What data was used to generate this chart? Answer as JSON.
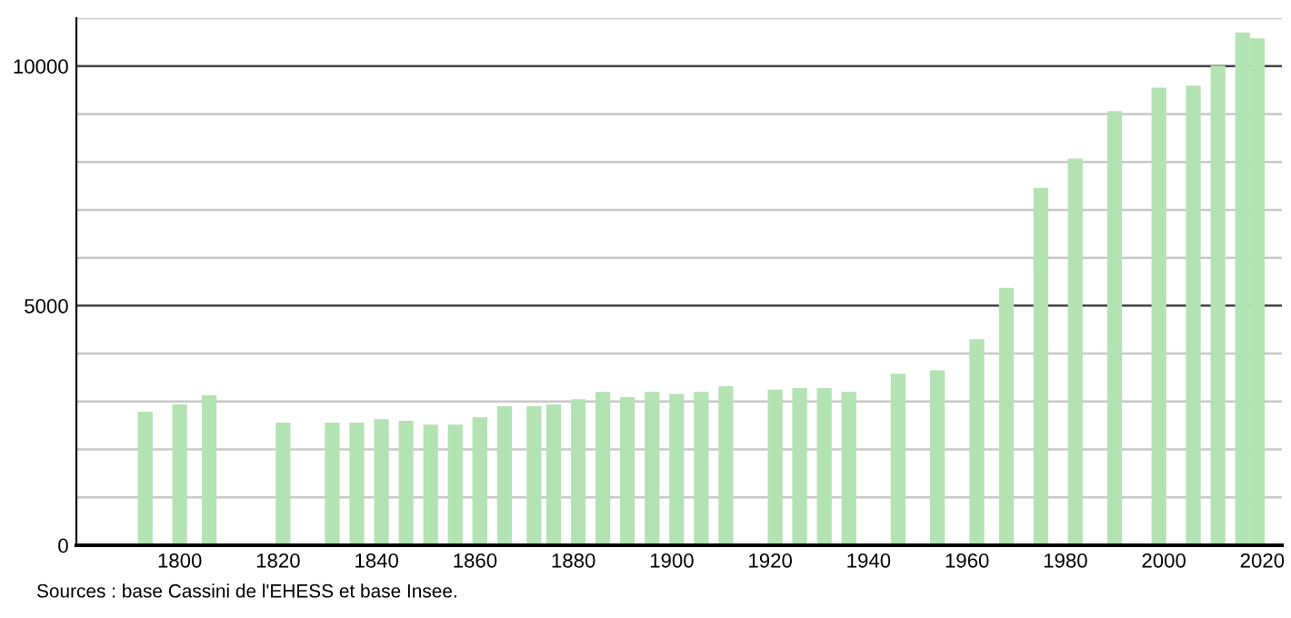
{
  "chart_data": {
    "type": "bar",
    "x": [
      1793,
      1800,
      1806,
      1821,
      1831,
      1836,
      1841,
      1846,
      1851,
      1856,
      1861,
      1866,
      1872,
      1876,
      1881,
      1886,
      1891,
      1896,
      1901,
      1906,
      1911,
      1921,
      1926,
      1931,
      1936,
      1946,
      1954,
      1962,
      1968,
      1975,
      1982,
      1990,
      1999,
      2006,
      2011,
      2016,
      2019
    ],
    "values": [
      2790,
      2940,
      3130,
      2560,
      2560,
      2560,
      2630,
      2600,
      2520,
      2520,
      2670,
      2900,
      2900,
      2940,
      3050,
      3200,
      3090,
      3200,
      3160,
      3200,
      3320,
      3250,
      3280,
      3280,
      3200,
      3580,
      3650,
      4300,
      5370,
      7460,
      8070,
      9060,
      9550,
      9590,
      10010,
      10700,
      10580
    ],
    "color": "#b3e3b3",
    "xlim": [
      1779,
      2024
    ],
    "xticks": [
      1800,
      1820,
      1840,
      1860,
      1880,
      1900,
      1920,
      1940,
      1960,
      1980,
      2000,
      2020
    ],
    "ylim": [
      0,
      11000
    ],
    "yticks": [
      0,
      {
        "value": 1000,
        "label": null
      },
      {
        "value": 2000,
        "label": null
      },
      {
        "value": 3000,
        "label": null
      },
      {
        "value": 4000,
        "label": null
      },
      5000,
      {
        "value": 6000,
        "label": null
      },
      {
        "value": 7000,
        "label": null
      },
      {
        "value": 8000,
        "label": null
      },
      {
        "value": 9000,
        "label": null
      },
      10000,
      {
        "value": 11000,
        "label": null
      }
    ],
    "grid": "y",
    "annotations": [
      "Sources : base Cassini de l'EHESS et base Insee."
    ]
  }
}
